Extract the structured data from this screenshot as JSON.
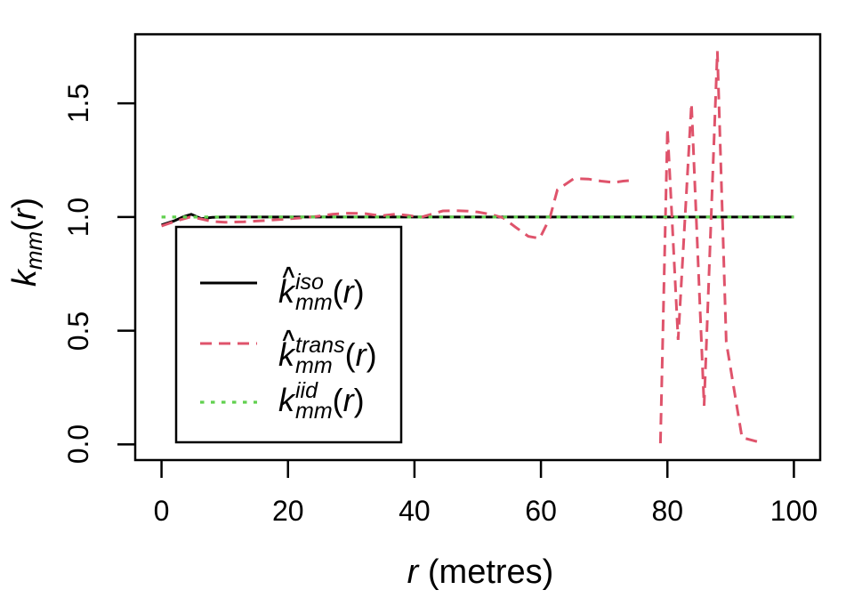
{
  "figure": {
    "background": "#ffffff",
    "xlabel": {
      "var": "r",
      "rest": " (metres)"
    },
    "ylabel": {
      "base": "k",
      "sub": "mm",
      "open": "(",
      "arg": "r",
      "close": ")"
    },
    "x_tick_labels": [
      "0",
      "20",
      "40",
      "60",
      "80",
      "100"
    ],
    "y_tick_labels": [
      "0.0",
      "0.5",
      "1.0",
      "1.5"
    ]
  },
  "legend": {
    "items": [
      {
        "id": "iso",
        "hat": "∧",
        "base": "k",
        "sup": "iso",
        "sub": "mm",
        "open": "(",
        "arg": "r",
        "close": ")",
        "line": {
          "color": "#000000",
          "style": "solid"
        }
      },
      {
        "id": "trans",
        "hat": "∧",
        "base": "k",
        "sup": "trans",
        "sub": "mm",
        "open": "(",
        "arg": "r",
        "close": ")",
        "line": {
          "color": "#df536b",
          "style": "dashed"
        }
      },
      {
        "id": "iid",
        "hat": "",
        "base": "k",
        "sup": "iid",
        "sub": "mm",
        "open": "(",
        "arg": "r",
        "close": ")",
        "line": {
          "color": "#61d04f",
          "style": "dotted"
        }
      }
    ]
  },
  "chart_data": {
    "type": "line",
    "title": "",
    "xlabel": "r (metres)",
    "ylabel": "kmm(r)",
    "xlim": [
      -4.16,
      104.16
    ],
    "ylim": [
      -0.069,
      1.804
    ],
    "x_tick_values": [
      0,
      20,
      40,
      60,
      80,
      100
    ],
    "y_tick_values": [
      0.0,
      0.5,
      1.0,
      1.5
    ],
    "grid": false,
    "legend_position": "inside-left-middle",
    "series": [
      {
        "name": "kmm_iso(r)",
        "color": "#000000",
        "style": "solid",
        "x": [
          0,
          2,
          3.5,
          4.7,
          6.3,
          8,
          10,
          15,
          20,
          30,
          40,
          50,
          60,
          70,
          80,
          90,
          100
        ],
        "y": [
          0.965,
          0.983,
          1.002,
          1.012,
          0.993,
          0.999,
          1.0,
          1.0,
          1.0,
          1.0,
          1.0,
          1.0,
          1.0,
          1.0,
          1.0,
          1.0,
          1.0
        ]
      },
      {
        "name": "kmm_trans(r)",
        "color": "#df536b",
        "style": "dashed",
        "x": [
          0,
          2,
          4.5,
          6,
          8,
          10,
          13,
          16,
          19,
          22,
          24.6,
          27,
          29.5,
          32,
          34.7,
          37,
          39,
          41,
          43,
          44.5,
          46.5,
          48.5,
          50,
          52,
          54,
          56,
          58,
          59.8,
          61.4,
          62.6,
          65.2,
          67.5,
          69.5,
          71.5,
          73,
          74.3,
          null,
          78.9,
          80,
          81.7,
          83.8,
          85.8,
          87.9,
          89.3,
          91.8,
          94.2
        ],
        "y": [
          0.961,
          0.98,
          1.0,
          0.993,
          0.981,
          0.977,
          0.979,
          0.984,
          0.99,
          0.996,
          1.003,
          1.012,
          1.017,
          1.016,
          1.005,
          1.013,
          1.007,
          0.999,
          1.015,
          1.027,
          1.028,
          1.026,
          1.022,
          1.012,
          0.997,
          0.955,
          0.915,
          0.906,
          0.995,
          1.12,
          1.169,
          1.167,
          1.158,
          1.152,
          1.158,
          1.161,
          null,
          0.005,
          1.39,
          0.46,
          1.5,
          0.17,
          1.73,
          0.45,
          0.03,
          0.012
        ]
      },
      {
        "name": "kmm_iid(r)",
        "color": "#61d04f",
        "style": "dotted",
        "x": [
          0,
          100
        ],
        "y": [
          1.0,
          1.0
        ]
      }
    ]
  }
}
